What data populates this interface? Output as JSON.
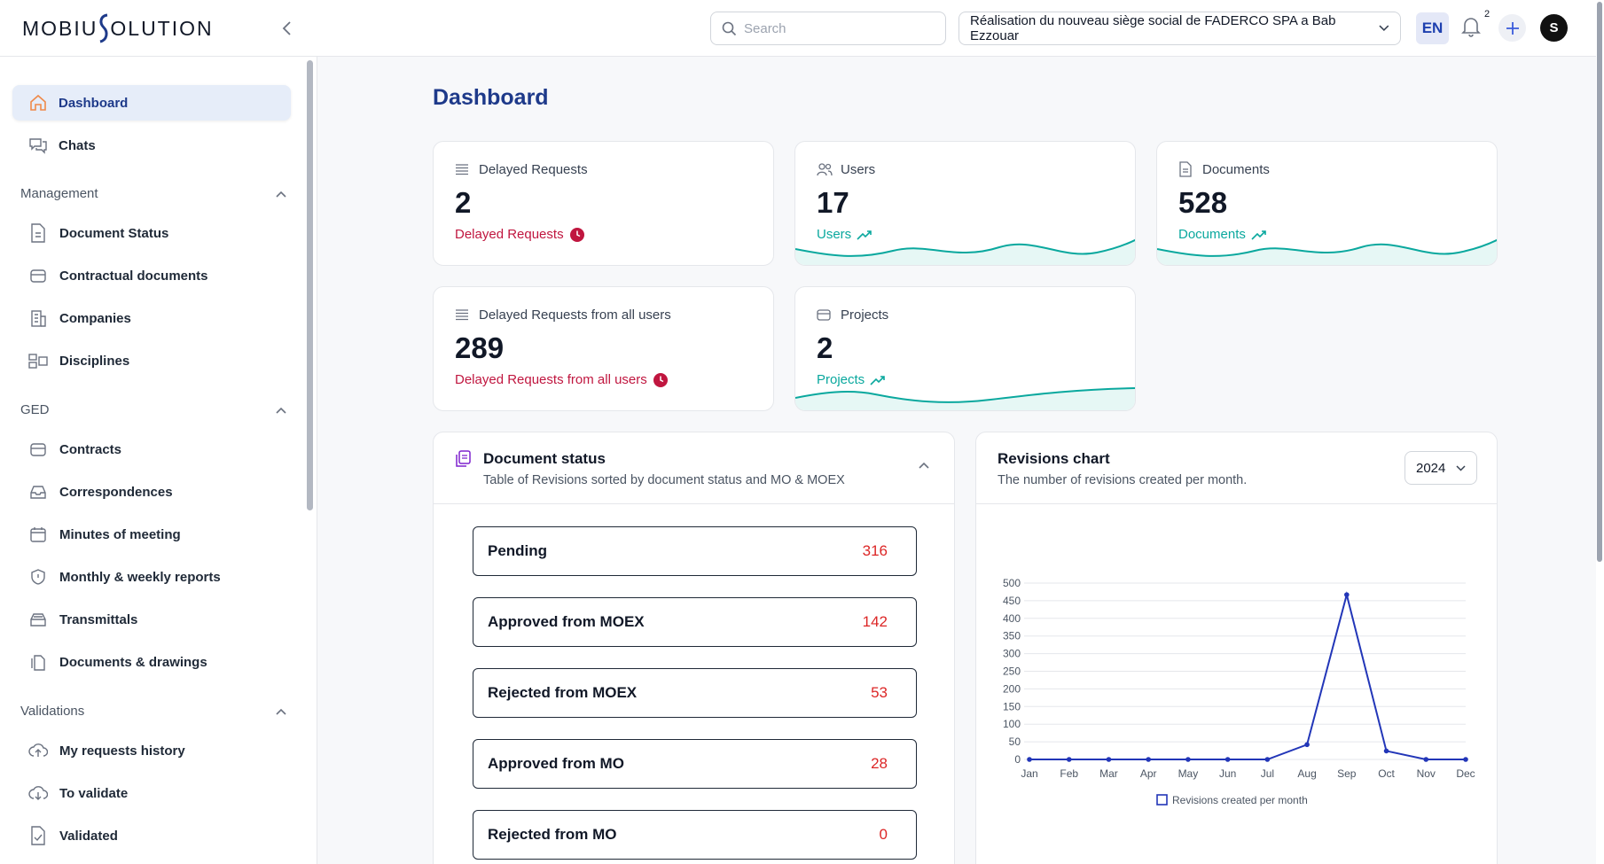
{
  "header": {
    "logo_left": "MOBIU",
    "logo_right": "OLUTION",
    "search_placeholder": "Search",
    "project": "Réalisation du nouveau siège social de FADERCO SPA a Bab Ezzouar",
    "language": "EN",
    "notification_count": "2",
    "avatar_initial": "S"
  },
  "sidebar": {
    "top_items": [
      {
        "label": "Dashboard",
        "icon": "home-icon",
        "active": true
      },
      {
        "label": "Chats",
        "icon": "chat-icon",
        "active": false
      }
    ],
    "sections": [
      {
        "title": "Management",
        "items": [
          {
            "label": "Document Status",
            "icon": "document-icon"
          },
          {
            "label": "Contractual documents",
            "icon": "archive-icon"
          },
          {
            "label": "Companies",
            "icon": "building-icon"
          },
          {
            "label": "Disciplines",
            "icon": "layout-icon"
          }
        ]
      },
      {
        "title": "GED",
        "items": [
          {
            "label": "Contracts",
            "icon": "archive-icon"
          },
          {
            "label": "Correspondences",
            "icon": "inbox-icon"
          },
          {
            "label": "Minutes of meeting",
            "icon": "calendar-icon"
          },
          {
            "label": "Monthly & weekly reports",
            "icon": "shield-icon"
          },
          {
            "label": "Transmittals",
            "icon": "tray-icon"
          },
          {
            "label": "Documents & drawings",
            "icon": "files-icon"
          }
        ]
      },
      {
        "title": "Validations",
        "items": [
          {
            "label": "My requests history",
            "icon": "cloud-upload-icon"
          },
          {
            "label": "To validate",
            "icon": "cloud-download-icon"
          },
          {
            "label": "Validated",
            "icon": "file-check-icon"
          }
        ]
      }
    ]
  },
  "main": {
    "title": "Dashboard",
    "cards": [
      {
        "title": "Delayed Requests",
        "value": "2",
        "sub": "Delayed Requests",
        "style": "red",
        "icon": "list-icon"
      },
      {
        "title": "Users",
        "value": "17",
        "sub": "Users",
        "style": "teal",
        "icon": "users-icon"
      },
      {
        "title": "Documents",
        "value": "528",
        "sub": "Documents",
        "style": "teal",
        "icon": "document-icon"
      },
      {
        "title": "Delayed Requests from all users",
        "value": "289",
        "sub": "Delayed Requests from all users",
        "style": "red",
        "icon": "list-icon"
      },
      {
        "title": "Projects",
        "value": "2",
        "sub": "Projects",
        "style": "teal",
        "icon": "archive-icon"
      }
    ],
    "document_status": {
      "title": "Document status",
      "description": "Table of Revisions sorted by document status and MO & MOEX",
      "rows": [
        {
          "label": "Pending",
          "value": "316"
        },
        {
          "label": "Approved from MOEX",
          "value": "142"
        },
        {
          "label": "Rejected from MOEX",
          "value": "53"
        },
        {
          "label": "Approved from MO",
          "value": "28"
        },
        {
          "label": "Rejected from MO",
          "value": "0"
        }
      ]
    },
    "revisions": {
      "title": "Revisions chart",
      "description": "The number of revisions created per month.",
      "year": "2024"
    }
  },
  "colors": {
    "accent": "#1e3a8a",
    "teal": "#0aa89e",
    "red": "#c0163f",
    "chart_line": "#2236b8"
  },
  "chart_data": {
    "type": "line",
    "categories": [
      "Jan",
      "Feb",
      "Mar",
      "Apr",
      "May",
      "Jun",
      "Jul",
      "Aug",
      "Sep",
      "Oct",
      "Nov",
      "Dec"
    ],
    "series": [
      {
        "name": "Revisions created per month",
        "values": [
          0,
          0,
          0,
          0,
          0,
          0,
          0,
          42,
          467,
          24,
          0,
          0
        ]
      }
    ],
    "yticks": [
      0,
      50,
      100,
      150,
      200,
      250,
      300,
      350,
      400,
      450,
      500
    ],
    "ylim": [
      0,
      500
    ],
    "grid": true,
    "legend": "bottom"
  }
}
